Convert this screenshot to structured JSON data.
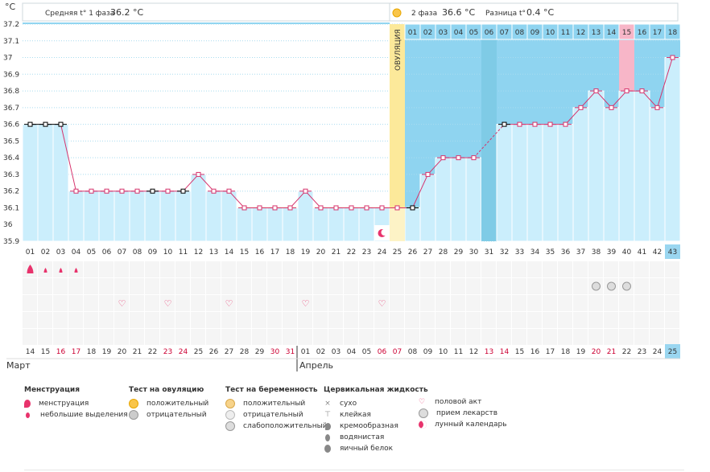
{
  "axis_unit": "°C",
  "header": {
    "phase1_label": "Средняя t° 1 фаза",
    "phase1_value": "36.2 °C",
    "phase2_label": "2 фаза",
    "phase2_value": "36.6 °C",
    "diff_label": "Разница t°",
    "diff_value": "0.4 °C"
  },
  "ovulation_label": "ОВУЛЯЦИЯ",
  "months": {
    "first": "Март",
    "second": "Апрель"
  },
  "colors": {
    "phase1_bg": "#ffffff",
    "phase2_bg": "#8fd4f0",
    "bar_fill": "#cbeefc",
    "line": "#d6336c",
    "ovulation": "#fce99a",
    "highlight": "#f7b6c8",
    "cover_line": "#f0e68c",
    "cycle_day_highlight": "#9ad6f0"
  },
  "chart_data": {
    "type": "line",
    "y_range": [
      35.9,
      37.2
    ],
    "y_ticks": [
      "37.2",
      "37.1",
      "37",
      "36.9",
      "36.8",
      "36.7",
      "36.6",
      "36.5",
      "36.4",
      "36.3",
      "36.2",
      "36.1",
      "36",
      "35.9"
    ],
    "cover_line": 36.1,
    "ovulation_day": 25,
    "phase2_top_labels": [
      "01",
      "02",
      "03",
      "04",
      "05",
      "06",
      "07",
      "08",
      "09",
      "10",
      "11",
      "12",
      "13",
      "14",
      "15",
      "16",
      "17",
      "18"
    ],
    "highlight_top_label": "15",
    "cycle_days": [
      "01",
      "02",
      "03",
      "04",
      "05",
      "06",
      "07",
      "08",
      "09",
      "10",
      "11",
      "12",
      "13",
      "14",
      "15",
      "16",
      "17",
      "18",
      "19",
      "20",
      "21",
      "22",
      "23",
      "24",
      "25",
      "26",
      "27",
      "28",
      "29",
      "30",
      "31",
      "32",
      "33",
      "34",
      "35",
      "36",
      "37",
      "38",
      "39",
      "40",
      "41",
      "42",
      "43"
    ],
    "dates": [
      "14",
      "15",
      "16",
      "17",
      "18",
      "19",
      "20",
      "21",
      "22",
      "23",
      "24",
      "25",
      "26",
      "27",
      "28",
      "29",
      "30",
      "31",
      "01",
      "02",
      "03",
      "04",
      "05",
      "06",
      "07",
      "08",
      "09",
      "10",
      "11",
      "12",
      "13",
      "14",
      "15",
      "16",
      "17",
      "18",
      "19",
      "20",
      "21",
      "22",
      "23",
      "24",
      "25"
    ],
    "red_dates": [
      2,
      3,
      9,
      10,
      16,
      17,
      23,
      24,
      30,
      31,
      37,
      38
    ],
    "temperatures": [
      36.6,
      36.6,
      36.6,
      36.2,
      36.2,
      36.2,
      36.2,
      36.2,
      36.2,
      36.2,
      36.2,
      36.3,
      36.2,
      36.2,
      36.1,
      36.1,
      36.1,
      36.1,
      36.2,
      36.1,
      36.1,
      36.1,
      36.1,
      36.1,
      36.1,
      36.1,
      36.3,
      36.4,
      36.4,
      36.4,
      null,
      36.6,
      36.6,
      36.6,
      36.6,
      36.6,
      36.7,
      36.8,
      36.7,
      36.8,
      36.8,
      36.7,
      37.0
    ],
    "excluded_days": [
      1,
      2,
      3,
      9,
      11,
      26,
      32
    ],
    "dashed_segment": [
      30,
      32
    ],
    "menstruation_days": [
      1
    ],
    "spotting_days": [
      2,
      3,
      4
    ],
    "sex_days": [
      7,
      10,
      14,
      19,
      24
    ],
    "medication_days": [
      38,
      39,
      40
    ],
    "lunar_day": 24
  },
  "legend": {
    "menstruation": {
      "title": "Менструация",
      "items": [
        "менструация",
        "небольшие выделения"
      ]
    },
    "ovulation_test": {
      "title": "Тест на овуляцию",
      "items": [
        "положительный",
        "отрицательный"
      ]
    },
    "pregnancy_test": {
      "title": "Тест на беременность",
      "items": [
        "положительный",
        "отрицательный",
        "слабоположительный"
      ]
    },
    "cervical": {
      "title": "Цервикальная жидкость",
      "items": [
        "сухо",
        "клейкая",
        "кремообразная",
        "водянистая",
        "яичный белок"
      ]
    },
    "other": {
      "items": [
        "половой акт",
        "прием лекарств",
        "лунный календарь"
      ]
    }
  }
}
